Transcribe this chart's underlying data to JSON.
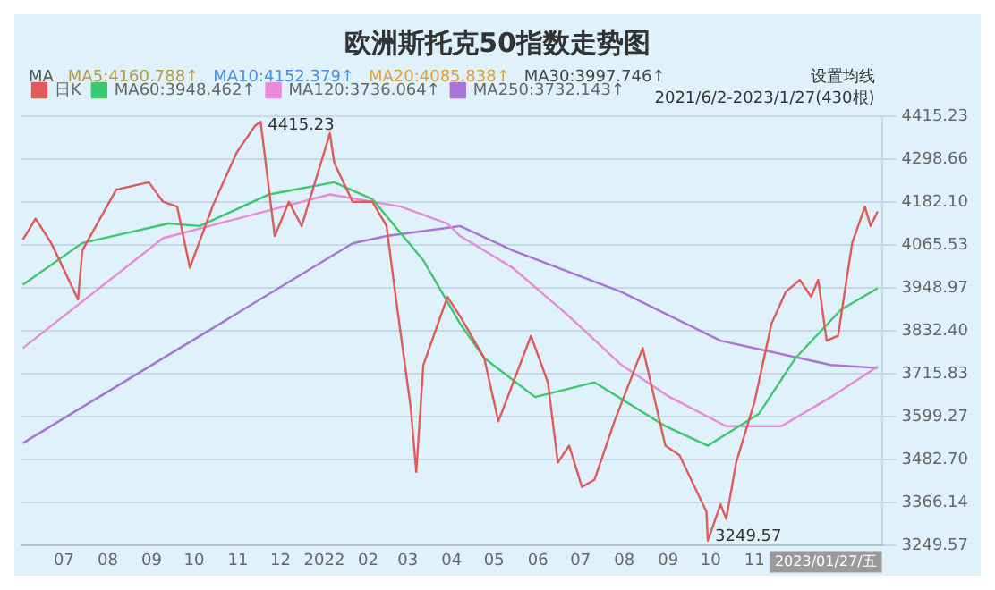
{
  "chart_data": {
    "type": "line",
    "title": "欧洲斯托克50指数走势图",
    "annotations": [
      "MA",
      "MA5:4160.788↑",
      "MA10:4152.379↑",
      "MA20:4085.838↑",
      "MA30:3997.746↑",
      "设置均线",
      "2021/6/2-2023/1/27(430根)",
      {
        "text": "4415.23",
        "x": "2021-11-17",
        "y": 4415.23
      },
      {
        "text": "3249.57",
        "x": "2022-09-29",
        "y": 3249.57
      },
      "2023/01/27/五"
    ],
    "xlim": [
      "2021-06-01",
      "2023-01-30"
    ],
    "xticks": [
      {
        "value": "2021-07-01",
        "label": "07"
      },
      {
        "value": "2021-08-01",
        "label": "08"
      },
      {
        "value": "2021-09-01",
        "label": "09"
      },
      {
        "value": "2021-10-01",
        "label": "10"
      },
      {
        "value": "2021-11-01",
        "label": "11"
      },
      {
        "value": "2021-12-01",
        "label": "12"
      },
      {
        "value": "2022-01-01",
        "label": "2022"
      },
      {
        "value": "2022-02-01",
        "label": "02"
      },
      {
        "value": "2022-03-01",
        "label": "03"
      },
      {
        "value": "2022-04-01",
        "label": "04"
      },
      {
        "value": "2022-05-01",
        "label": "05"
      },
      {
        "value": "2022-06-01",
        "label": "06"
      },
      {
        "value": "2022-07-01",
        "label": "07"
      },
      {
        "value": "2022-08-01",
        "label": "08"
      },
      {
        "value": "2022-09-01",
        "label": "09"
      },
      {
        "value": "2022-10-01",
        "label": "10"
      },
      {
        "value": "2022-11-01",
        "label": "11"
      }
    ],
    "ylim": [
      3249.57,
      4415.23
    ],
    "yticks": [
      3249.57,
      3366.14,
      {
        "value": 3482.7,
        "label": "3482.70"
      },
      3599.27,
      3715.83,
      {
        "value": 3832.4,
        "label": "3832.40"
      },
      3948.97,
      4065.53,
      {
        "value": 4182.1,
        "label": "4182.10"
      },
      4298.66,
      4415.23
    ],
    "grid": "y",
    "legend": "top left",
    "series": [
      {
        "name": "日K",
        "color": "#e05a5a",
        "x": [
          "2021-06-02",
          "2021-06-11",
          "2021-06-22",
          "2021-07-11",
          "2021-07-14",
          "2021-08-07",
          "2021-08-30",
          "2021-09-09",
          "2021-09-19",
          "2021-09-28",
          "2021-10-14",
          "2021-10-31",
          "2021-11-13",
          "2021-11-17",
          "2021-11-27",
          "2021-12-07",
          "2021-12-16",
          "2022-01-05",
          "2022-01-08",
          "2022-01-21",
          "2022-02-04",
          "2022-02-14",
          "2022-02-20",
          "2022-03-03",
          "2022-03-07",
          "2022-03-12",
          "2022-03-29",
          "2022-04-07",
          "2022-04-24",
          "2022-05-04",
          "2022-05-27",
          "2022-06-08",
          "2022-06-15",
          "2022-06-23",
          "2022-07-02",
          "2022-07-11",
          "2022-07-25",
          "2022-08-14",
          "2022-08-30",
          "2022-09-09",
          "2022-09-28",
          "2022-09-29",
          "2022-10-08",
          "2022-10-12",
          "2022-10-19",
          "2022-11-01",
          "2022-11-13",
          "2022-11-23",
          "2022-12-03",
          "2022-12-11",
          "2022-12-16",
          "2022-12-22",
          "2022-12-30",
          "2023-01-09",
          "2023-01-18",
          "2023-01-22",
          "2023-01-27"
        ],
        "values": [
          4080,
          4137,
          4071,
          3918,
          4051,
          4216,
          4236,
          4183,
          4170,
          4004,
          4170,
          4316,
          4389,
          4400,
          4090,
          4183,
          4117,
          4369,
          4289,
          4183,
          4183,
          4117,
          3938,
          3627,
          3450,
          3740,
          3925,
          3872,
          3759,
          3587,
          3819,
          3693,
          3475,
          3521,
          3409,
          3429,
          3587,
          3786,
          3521,
          3495,
          3342,
          3263,
          3362,
          3322,
          3475,
          3640,
          3852,
          3938,
          3971,
          3925,
          3971,
          3806,
          3819,
          4071,
          4170,
          4117,
          4157
        ]
      },
      {
        "name": "MA60:3948.462↑",
        "color": "#3cc86e",
        "x": [
          "2021-06-02",
          "2021-07-14",
          "2021-09-13",
          "2021-10-05",
          "2021-11-23",
          "2022-01-08",
          "2022-02-04",
          "2022-03-12",
          "2022-04-07",
          "2022-04-24",
          "2022-05-30",
          "2022-07-11",
          "2022-08-30",
          "2022-09-29",
          "2022-11-04",
          "2022-11-30",
          "2023-01-01",
          "2023-01-27"
        ],
        "values": [
          3958,
          4071,
          4124,
          4117,
          4203,
          4236,
          4190,
          4024,
          3852,
          3759,
          3653,
          3693,
          3574,
          3521,
          3607,
          3759,
          3890,
          3948
        ]
      },
      {
        "name": "MA120:3736.064↑",
        "color": "#e88ad8",
        "x": [
          "2021-06-02",
          "2021-09-09",
          "2022-01-05",
          "2022-02-24",
          "2022-03-29",
          "2022-04-07",
          "2022-05-14",
          "2022-06-23",
          "2022-07-30",
          "2022-09-02",
          "2022-10-12",
          "2022-11-20",
          "2022-12-25",
          "2023-01-27"
        ],
        "values": [
          3786,
          4084,
          4203,
          4170,
          4124,
          4090,
          4004,
          3872,
          3740,
          3653,
          3574,
          3574,
          3653,
          3736
        ]
      },
      {
        "name": "MA250:3732.143↑",
        "color": "#a974d6",
        "x": [
          "2021-06-02",
          "2022-01-21",
          "2022-02-14",
          "2022-04-07",
          "2022-05-14",
          "2022-07-30",
          "2022-10-08",
          "2022-12-25",
          "2023-01-27"
        ],
        "values": [
          3528,
          4070,
          4090,
          4117,
          4051,
          3938,
          3806,
          3740,
          3732
        ]
      }
    ]
  }
}
